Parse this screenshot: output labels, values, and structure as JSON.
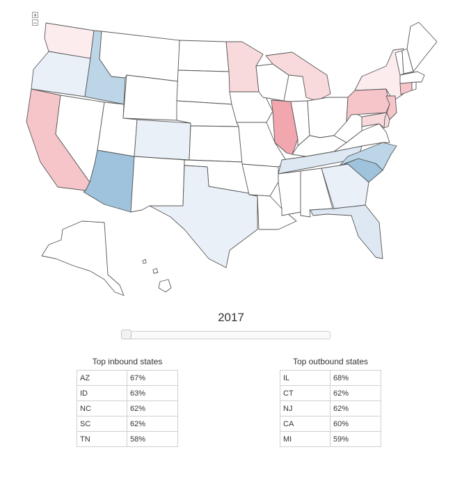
{
  "zoom": {
    "in_label": "+",
    "out_label": "−"
  },
  "map": {
    "legend_colors": {
      "inbound_strong": "#9fc3dc",
      "inbound_medium": "#bcd6e8",
      "inbound_light": "#dde8f3",
      "inbound_faint": "#eaf0f8",
      "outbound_strong": "#f2a6ad",
      "outbound_medium": "#f6c5ca",
      "outbound_light": "#f9dadc",
      "outbound_faint": "#fcecee",
      "neutral": "#ffffff"
    },
    "states": [
      {
        "id": "WA",
        "shade": "outbound_faint"
      },
      {
        "id": "OR",
        "shade": "inbound_faint"
      },
      {
        "id": "CA",
        "shade": "outbound_medium"
      },
      {
        "id": "ID",
        "shade": "inbound_medium"
      },
      {
        "id": "NV",
        "shade": "neutral"
      },
      {
        "id": "AZ",
        "shade": "inbound_strong"
      },
      {
        "id": "UT",
        "shade": "neutral"
      },
      {
        "id": "MT",
        "shade": "neutral"
      },
      {
        "id": "WY",
        "shade": "neutral"
      },
      {
        "id": "CO",
        "shade": "inbound_faint"
      },
      {
        "id": "NM",
        "shade": "neutral"
      },
      {
        "id": "ND",
        "shade": "neutral"
      },
      {
        "id": "SD",
        "shade": "neutral"
      },
      {
        "id": "NE",
        "shade": "neutral"
      },
      {
        "id": "KS",
        "shade": "neutral"
      },
      {
        "id": "OK",
        "shade": "neutral"
      },
      {
        "id": "TX",
        "shade": "inbound_faint"
      },
      {
        "id": "MN",
        "shade": "outbound_light"
      },
      {
        "id": "IA",
        "shade": "neutral"
      },
      {
        "id": "MO",
        "shade": "neutral"
      },
      {
        "id": "AR",
        "shade": "neutral"
      },
      {
        "id": "LA",
        "shade": "neutral"
      },
      {
        "id": "WI",
        "shade": "neutral"
      },
      {
        "id": "IL",
        "shade": "outbound_strong"
      },
      {
        "id": "MI",
        "shade": "outbound_light"
      },
      {
        "id": "IN",
        "shade": "neutral"
      },
      {
        "id": "OH",
        "shade": "neutral"
      },
      {
        "id": "KY",
        "shade": "neutral"
      },
      {
        "id": "TN",
        "shade": "inbound_light"
      },
      {
        "id": "MS",
        "shade": "neutral"
      },
      {
        "id": "AL",
        "shade": "neutral"
      },
      {
        "id": "GA",
        "shade": "inbound_faint"
      },
      {
        "id": "FL",
        "shade": "inbound_light"
      },
      {
        "id": "SC",
        "shade": "inbound_strong"
      },
      {
        "id": "NC",
        "shade": "inbound_medium"
      },
      {
        "id": "VA",
        "shade": "neutral"
      },
      {
        "id": "WV",
        "shade": "neutral"
      },
      {
        "id": "PA",
        "shade": "outbound_medium"
      },
      {
        "id": "NY",
        "shade": "outbound_faint"
      },
      {
        "id": "NJ",
        "shade": "outbound_medium"
      },
      {
        "id": "CT",
        "shade": "outbound_medium"
      },
      {
        "id": "MD",
        "shade": "outbound_light"
      },
      {
        "id": "DE",
        "shade": "outbound_light"
      },
      {
        "id": "VT",
        "shade": "neutral"
      },
      {
        "id": "NH",
        "shade": "neutral"
      },
      {
        "id": "ME",
        "shade": "neutral"
      },
      {
        "id": "MA",
        "shade": "neutral"
      },
      {
        "id": "RI",
        "shade": "neutral"
      },
      {
        "id": "AK",
        "shade": "neutral"
      },
      {
        "id": "HI",
        "shade": "neutral"
      }
    ]
  },
  "year_slider": {
    "label": "2017",
    "value_fraction": 0.0
  },
  "inbound": {
    "title": "Top inbound states",
    "rows": [
      {
        "state": "AZ",
        "pct": "67%"
      },
      {
        "state": "ID",
        "pct": "63%"
      },
      {
        "state": "NC",
        "pct": "62%"
      },
      {
        "state": "SC",
        "pct": "62%"
      },
      {
        "state": "TN",
        "pct": "58%"
      }
    ]
  },
  "outbound": {
    "title": "Top outbound states",
    "rows": [
      {
        "state": "IL",
        "pct": "68%"
      },
      {
        "state": "CT",
        "pct": "62%"
      },
      {
        "state": "NJ",
        "pct": "62%"
      },
      {
        "state": "CA",
        "pct": "60%"
      },
      {
        "state": "MI",
        "pct": "59%"
      }
    ]
  }
}
